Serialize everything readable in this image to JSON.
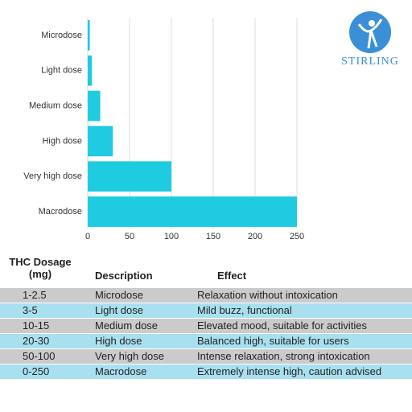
{
  "chart_data": {
    "type": "bar",
    "orientation": "horizontal",
    "categories": [
      "Microdose",
      "Light dose",
      "Medium dose",
      "High dose",
      "Very high dose",
      "Macrodose"
    ],
    "values": [
      2.5,
      5,
      15,
      30,
      100,
      250
    ],
    "color": "#1ecbe1",
    "xlim": [
      0,
      250
    ],
    "xticks": [
      0,
      50,
      100,
      150,
      200,
      250
    ],
    "grid": true
  },
  "logo": {
    "text": "STIRLING"
  },
  "table": {
    "headers": [
      "THC Dosage (mg)",
      "Description",
      "Effect"
    ],
    "rows": [
      [
        "1-2.5",
        "Microdose",
        "Relaxation without intoxication"
      ],
      [
        "3-5",
        "Light dose",
        "Mild buzz, functional"
      ],
      [
        "10-15",
        "Medium dose",
        "Elevated mood, suitable for activities"
      ],
      [
        "20-30",
        "High dose",
        "Balanced high, suitable for users"
      ],
      [
        "50-100",
        "Very high dose",
        "Intense relaxation, strong intoxication"
      ],
      [
        "0-250",
        "Macrodose",
        "Extremely intense high, caution advised"
      ]
    ],
    "row_colors": [
      "#cbcbcb",
      "#a8e0ef"
    ]
  }
}
